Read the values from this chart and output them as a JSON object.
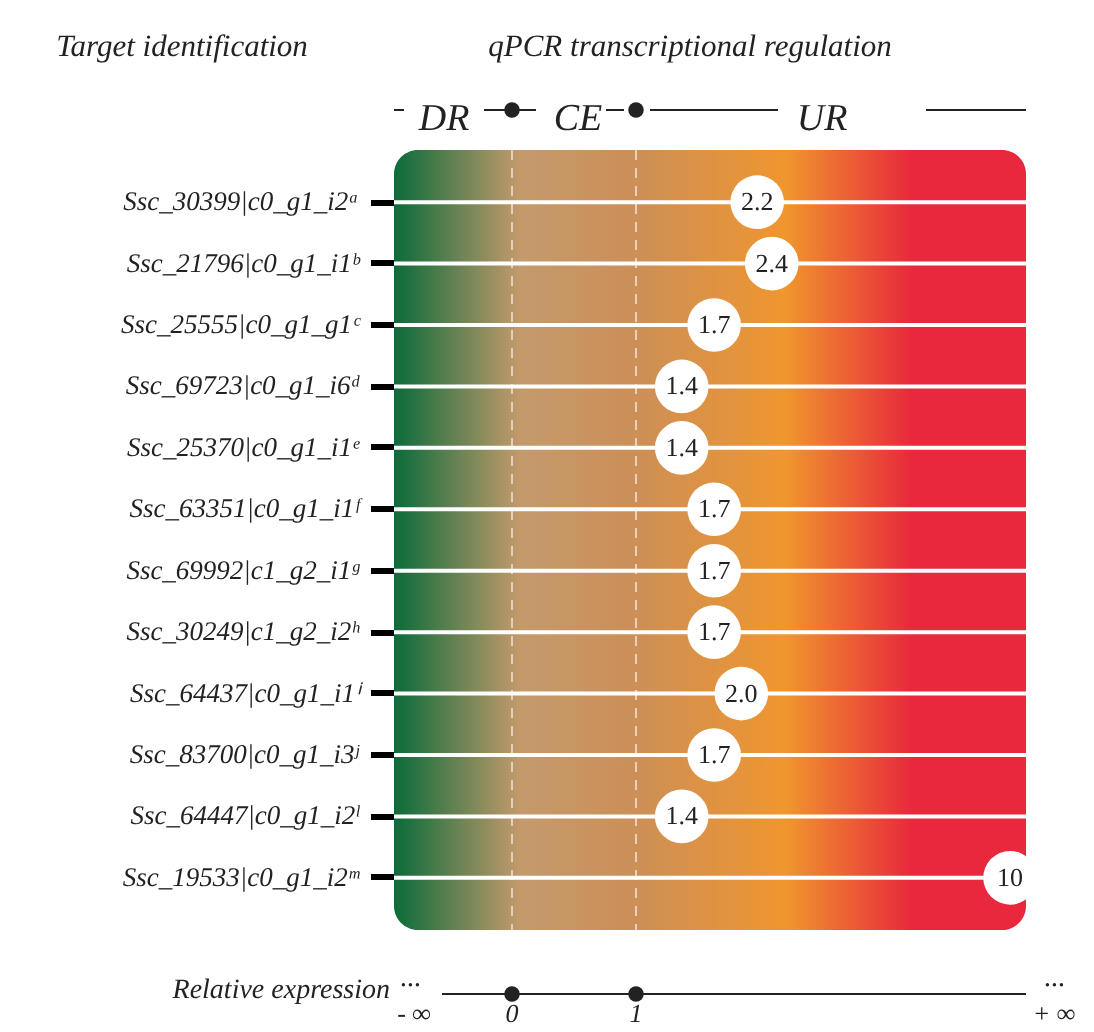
{
  "chart_data": {
    "type": "other",
    "title": "qPCR transcriptional regulation",
    "ylabel": "Target identification",
    "xlabel": "Relative expression",
    "categories": [
      "Ssc_30399|c0_g1_i2ᵃ",
      "Ssc_21796|c0_g1_i1ᵇ",
      "Ssc_25555|c0_g1_g1ᶜ",
      "Ssc_69723|c0_g1_i6ᵈ",
      "Ssc_25370|c0_g1_i1ᵉ",
      "Ssc_63351|c0_g1_i1ᶠ",
      "Ssc_69992|c1_g2_i1ᵍ",
      "Ssc_30249|c1_g2_i2ʰ",
      "Ssc_64437|c0_g1_i1ⁱ",
      "Ssc_83700|c0_g1_i3ʲ",
      "Ssc_64447|c0_g1_i2ˡ",
      "Ssc_19533|c0_g1_i2ᵐ"
    ],
    "values": [
      2.2,
      2.4,
      1.7,
      1.4,
      1.4,
      1.7,
      1.7,
      1.7,
      2.0,
      1.7,
      1.4,
      10
    ],
    "value_labels": [
      "2.2",
      "2.4",
      "1.7",
      "1.4",
      "1.4",
      "1.7",
      "1.7",
      "1.7",
      "2.0",
      "1.7",
      "1.4",
      "10"
    ],
    "annotations": [
      "DR",
      "CE",
      "UR",
      "···",
      "···",
      "- ∞",
      "0",
      "1",
      "+ ∞"
    ]
  }
}
